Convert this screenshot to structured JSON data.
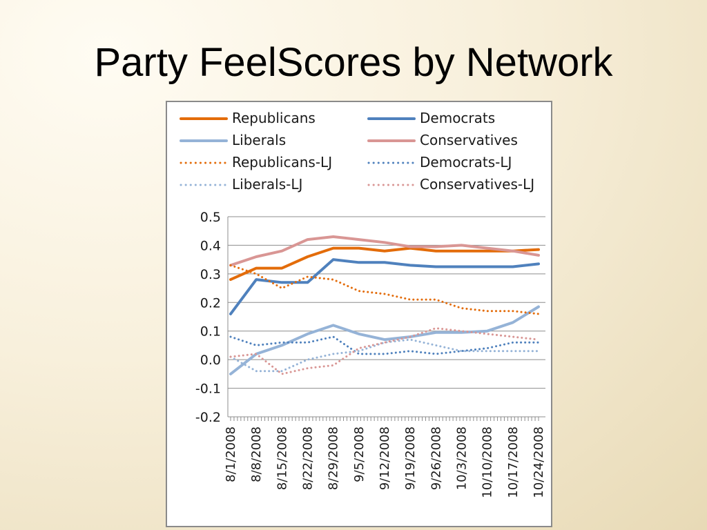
{
  "slide": {
    "title": "Party FeelScores by Network"
  },
  "chart_data": {
    "type": "line",
    "title": "",
    "xlabel": "",
    "ylabel": "",
    "ylim": [
      -0.2,
      0.5
    ],
    "yticks": [
      "0.5",
      "0.4",
      "0.3",
      "0.2",
      "0.1",
      "0.0",
      "-0.1",
      "-0.2"
    ],
    "grid": true,
    "legend_position": "top",
    "x": [
      "8/1/2008",
      "8/8/2008",
      "8/15/2008",
      "8/22/2008",
      "8/29/2008",
      "9/5/2008",
      "9/12/2008",
      "9/19/2008",
      "9/26/2008",
      "10/3/2008",
      "10/10/2008",
      "10/17/2008",
      "10/24/2008"
    ],
    "series": [
      {
        "name": "Republicans",
        "color": "#e36c0a",
        "dash": "solid",
        "values": [
          0.28,
          0.32,
          0.32,
          0.36,
          0.39,
          0.39,
          0.38,
          0.39,
          0.38,
          0.38,
          0.38,
          0.38,
          0.385
        ]
      },
      {
        "name": "Democrats",
        "color": "#4f81bd",
        "dash": "solid",
        "values": [
          0.16,
          0.28,
          0.27,
          0.27,
          0.35,
          0.34,
          0.34,
          0.33,
          0.325,
          0.325,
          0.325,
          0.325,
          0.335
        ]
      },
      {
        "name": "Liberals",
        "color": "#95b3d7",
        "dash": "solid",
        "values": [
          -0.05,
          0.02,
          0.05,
          0.09,
          0.12,
          0.09,
          0.07,
          0.08,
          0.095,
          0.095,
          0.1,
          0.13,
          0.185
        ]
      },
      {
        "name": "Conservatives",
        "color": "#d99694",
        "dash": "solid",
        "values": [
          0.33,
          0.36,
          0.38,
          0.42,
          0.43,
          0.42,
          0.41,
          0.395,
          0.395,
          0.4,
          0.39,
          0.38,
          0.365
        ]
      },
      {
        "name": "Republicans-LJ",
        "color": "#e36c0a",
        "dash": "dotted",
        "values": [
          0.33,
          0.3,
          0.25,
          0.29,
          0.28,
          0.24,
          0.23,
          0.21,
          0.21,
          0.18,
          0.17,
          0.17,
          0.16
        ]
      },
      {
        "name": "Democrats-LJ",
        "color": "#4f81bd",
        "dash": "dotted",
        "values": [
          0.08,
          0.05,
          0.06,
          0.06,
          0.08,
          0.02,
          0.02,
          0.03,
          0.02,
          0.03,
          0.04,
          0.06,
          0.06
        ]
      },
      {
        "name": "Liberals-LJ",
        "color": "#95b3d7",
        "dash": "dotted",
        "values": [
          0.01,
          -0.04,
          -0.04,
          0.0,
          0.02,
          0.03,
          0.06,
          0.07,
          0.05,
          0.03,
          0.03,
          0.03,
          0.03
        ]
      },
      {
        "name": "Conservatives-LJ",
        "color": "#d99694",
        "dash": "dotted",
        "values": [
          0.01,
          0.02,
          -0.05,
          -0.03,
          -0.02,
          0.04,
          0.06,
          0.08,
          0.11,
          0.1,
          0.09,
          0.08,
          0.07
        ]
      }
    ]
  }
}
